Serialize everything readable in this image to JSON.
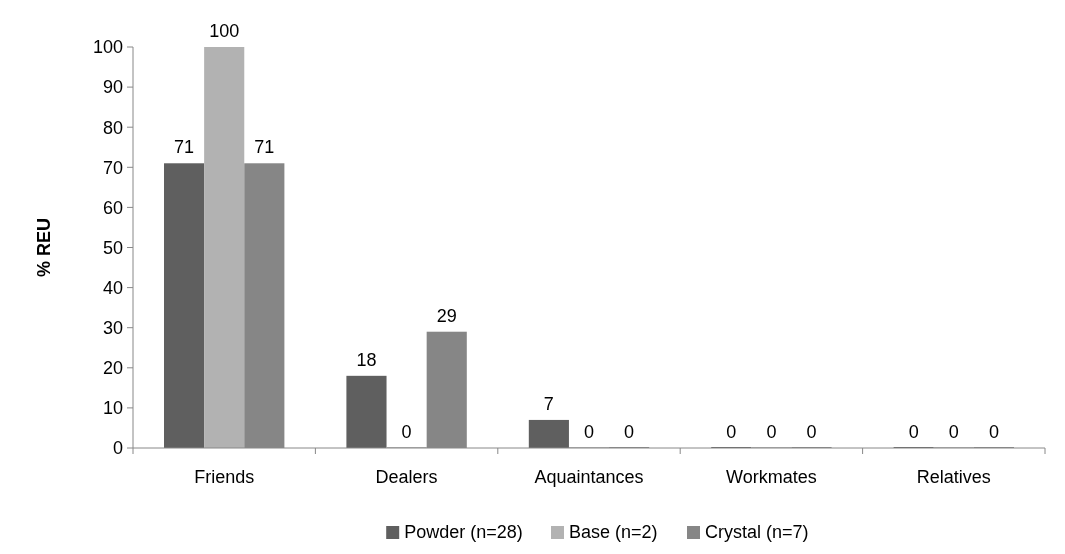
{
  "chart_data": {
    "type": "bar",
    "ylabel": "% REU",
    "categories": [
      "Friends",
      "Dealers",
      "Aquaintances",
      "Workmates",
      "Relatives"
    ],
    "series": [
      {
        "name": "Powder (n=28)",
        "color": "#5f5f5f",
        "values": [
          71,
          18,
          7,
          0,
          0
        ]
      },
      {
        "name": "Base (n=2)",
        "color": "#b2b2b2",
        "values": [
          100,
          0,
          0,
          0,
          0
        ]
      },
      {
        "name": "Crystal (n=7)",
        "color": "#868686",
        "values": [
          71,
          29,
          0,
          0,
          0
        ]
      }
    ],
    "ylim": [
      0,
      100
    ],
    "yticks": [
      0,
      10,
      20,
      30,
      40,
      50,
      60,
      70,
      80,
      90,
      100
    ],
    "data_labels": true,
    "legend": "bottom",
    "grid": false
  }
}
